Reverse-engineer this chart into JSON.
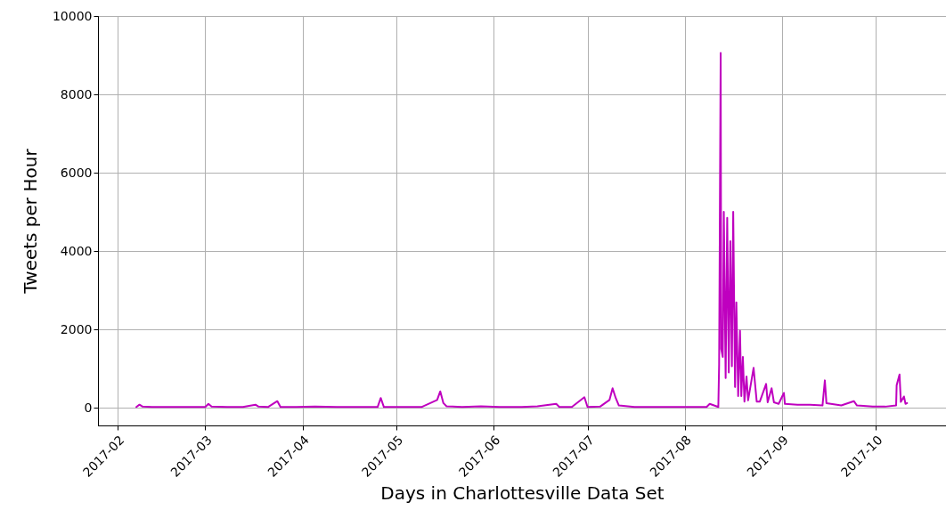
{
  "chart_data": {
    "type": "line",
    "xlabel": "Days in Charlottesville Data Set",
    "ylabel": "Tweets per Hour",
    "x": [
      "2017-02-07",
      "2017-02-08",
      "2017-02-09",
      "2017-02-12",
      "2017-02-16",
      "2017-02-20",
      "2017-02-25",
      "2017-03-01",
      "2017-03-02",
      "2017-03-03",
      "2017-03-08",
      "2017-03-13",
      "2017-03-17",
      "2017-03-18",
      "2017-03-21",
      "2017-03-24",
      "2017-03-25",
      "2017-03-30",
      "2017-04-05",
      "2017-04-12",
      "2017-04-18",
      "2017-04-25",
      "2017-04-26",
      "2017-04-27",
      "2017-05-03",
      "2017-05-09",
      "2017-05-14",
      "2017-05-15",
      "2017-05-16",
      "2017-05-17",
      "2017-05-22",
      "2017-05-28",
      "2017-06-03",
      "2017-06-10",
      "2017-06-15",
      "2017-06-21",
      "2017-06-22",
      "2017-06-26",
      "2017-06-30",
      "2017-07-01",
      "2017-07-05",
      "2017-07-08",
      "2017-07-09",
      "2017-07-10",
      "2017-07-11",
      "2017-07-16",
      "2017-07-22",
      "2017-07-28",
      "2017-08-03",
      "2017-08-08",
      "2017-08-09",
      "2017-08-11T18:00",
      "2017-08-12T00:00",
      "2017-08-12T12:00",
      "2017-08-12T16:00",
      "2017-08-13T04:00",
      "2017-08-13T12:00",
      "2017-08-14T02:00",
      "2017-08-14T14:00",
      "2017-08-15T02:00",
      "2017-08-15T14:00",
      "2017-08-16T02:00",
      "2017-08-16T12:00",
      "2017-08-17T02:00",
      "2017-08-17T12:00",
      "2017-08-18T02:00",
      "2017-08-18T16:00",
      "2017-08-19T02:00",
      "2017-08-19T14:00",
      "2017-08-20T02:00",
      "2017-08-20T18:00",
      "2017-08-21T06:00",
      "2017-08-23T00:00",
      "2017-08-24T00:00",
      "2017-08-25T00:00",
      "2017-08-27T00:00",
      "2017-08-27T12:00",
      "2017-08-28T18:00",
      "2017-08-29T12:00",
      "2017-08-31T00:00",
      "2017-09-01T16:00",
      "2017-09-02",
      "2017-09-06",
      "2017-09-10",
      "2017-09-14",
      "2017-09-14T18:00",
      "2017-09-15T06:00",
      "2017-09-20",
      "2017-09-24",
      "2017-09-25",
      "2017-09-30",
      "2017-10-04",
      "2017-10-07T12:00",
      "2017-10-07T16:00",
      "2017-10-08T14:00",
      "2017-10-09T00:00",
      "2017-10-10T00:00",
      "2017-10-10T12:00",
      "2017-10-11"
    ],
    "series": [
      {
        "color": "#bf00bf",
        "values": [
          20,
          80,
          30,
          20,
          20,
          20,
          20,
          20,
          100,
          30,
          20,
          20,
          80,
          30,
          20,
          170,
          20,
          20,
          30,
          20,
          20,
          20,
          250,
          20,
          20,
          20,
          200,
          420,
          120,
          40,
          20,
          40,
          20,
          20,
          40,
          100,
          20,
          20,
          270,
          20,
          30,
          200,
          500,
          250,
          60,
          20,
          20,
          20,
          20,
          20,
          100,
          20,
          1100,
          9060,
          1500,
          1300,
          5000,
          760,
          4850,
          900,
          4250,
          1060,
          5000,
          530,
          2690,
          300,
          1970,
          300,
          1300,
          160,
          800,
          190,
          1020,
          160,
          160,
          610,
          140,
          500,
          140,
          100,
          380,
          100,
          80,
          80,
          60,
          700,
          120,
          60,
          170,
          60,
          30,
          30,
          60,
          575,
          850,
          150,
          290,
          100,
          120
        ]
      }
    ],
    "xlim": [
      "2017-01-25T18:00",
      "2017-10-23T10:00"
    ],
    "xticks": [
      "2017-02",
      "2017-03",
      "2017-04",
      "2017-05",
      "2017-06",
      "2017-07",
      "2017-08",
      "2017-09",
      "2017-10"
    ],
    "ylim": [
      -450,
      10000
    ],
    "yticks": [
      0,
      2000,
      4000,
      6000,
      8000,
      10000
    ],
    "grid": true,
    "line_style": "solid"
  }
}
